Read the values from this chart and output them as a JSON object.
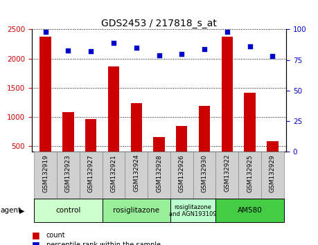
{
  "title": "GDS2453 / 217818_s_at",
  "samples": [
    "GSM132919",
    "GSM132923",
    "GSM132927",
    "GSM132921",
    "GSM132924",
    "GSM132928",
    "GSM132926",
    "GSM132930",
    "GSM132922",
    "GSM132925",
    "GSM132929"
  ],
  "counts": [
    2380,
    1080,
    960,
    1860,
    1240,
    660,
    840,
    1190,
    2380,
    1410,
    580
  ],
  "percentiles": [
    98,
    83,
    82,
    89,
    85,
    79,
    80,
    84,
    98,
    86,
    78
  ],
  "bar_color": "#cc0000",
  "dot_color": "#0000cc",
  "ylim_left": [
    400,
    2500
  ],
  "ylim_right": [
    0,
    100
  ],
  "yticks_left": [
    500,
    1000,
    1500,
    2000,
    2500
  ],
  "yticks_right": [
    0,
    25,
    50,
    75,
    100
  ],
  "groups": [
    {
      "label": "control",
      "start": 0,
      "end": 2,
      "color": "#ccffcc"
    },
    {
      "label": "rosiglitazone",
      "start": 3,
      "end": 5,
      "color": "#99ee99"
    },
    {
      "label": "rosiglitazone\nand AGN193109",
      "start": 6,
      "end": 7,
      "color": "#bbffcc"
    },
    {
      "label": "AM580",
      "start": 8,
      "end": 10,
      "color": "#44cc44"
    }
  ],
  "xtick_bg_color": "#d0d0d0",
  "xtick_border_color": "#888888",
  "legend_count_color": "#cc0000",
  "legend_dot_color": "#0000cc",
  "agent_label": "agent",
  "background_color": "#ffffff",
  "plot_bg_color": "#ffffff",
  "tick_label_color_left": "#cc0000",
  "tick_label_color_right": "#0000cc",
  "grid_color": "#000000",
  "title_fontsize": 10,
  "bar_width": 0.5
}
